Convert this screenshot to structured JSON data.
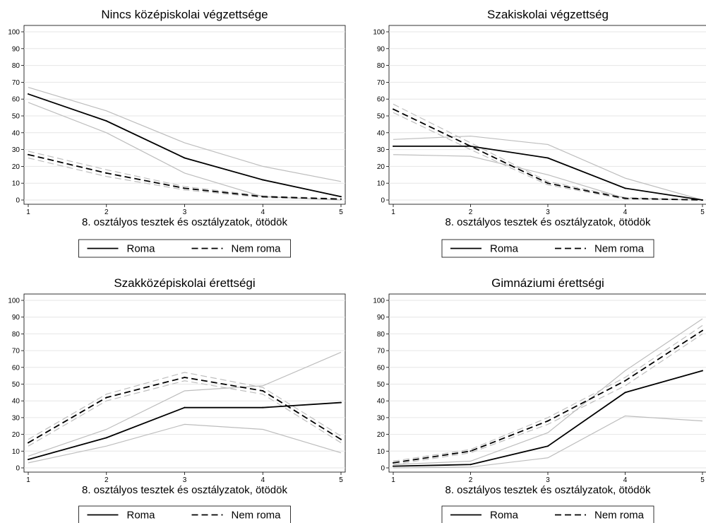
{
  "chart_data": [
    {
      "type": "line",
      "title": "Nincs középiskolai végzettsége",
      "xlabel": "8. osztályos tesztek és osztályzatok, ötödök",
      "ylabel": "",
      "x": [
        1,
        2,
        3,
        4,
        5
      ],
      "xlim": [
        1,
        5
      ],
      "ylim": [
        0,
        100
      ],
      "yticks": [
        0,
        10,
        20,
        30,
        40,
        50,
        60,
        70,
        80,
        90,
        100
      ],
      "grid": true,
      "legend": "bottom",
      "series": [
        {
          "name": "Roma",
          "style": "solid",
          "values": [
            63,
            47,
            25,
            12,
            2
          ],
          "ci_low": [
            58,
            40,
            16,
            2,
            0
          ],
          "ci_high": [
            67,
            53,
            34,
            20,
            11
          ]
        },
        {
          "name": "Nem roma",
          "style": "dashed",
          "values": [
            27,
            16,
            7,
            2,
            0.5
          ],
          "ci_low": [
            25,
            14,
            6,
            1.5,
            0.3
          ],
          "ci_high": [
            29,
            18,
            8,
            2.5,
            0.8
          ]
        }
      ]
    },
    {
      "type": "line",
      "title": "Szakiskolai végzettség",
      "xlabel": "8. osztályos tesztek és osztályzatok, ötödök",
      "ylabel": "",
      "x": [
        1,
        2,
        3,
        4,
        5
      ],
      "xlim": [
        1,
        5
      ],
      "ylim": [
        0,
        100
      ],
      "yticks": [
        0,
        10,
        20,
        30,
        40,
        50,
        60,
        70,
        80,
        90,
        100
      ],
      "grid": true,
      "legend": "bottom",
      "series": [
        {
          "name": "Roma",
          "style": "solid",
          "values": [
            32,
            32,
            25,
            7,
            0
          ],
          "ci_low": [
            27,
            26,
            15,
            1,
            0
          ],
          "ci_high": [
            36,
            38,
            33,
            13,
            0
          ]
        },
        {
          "name": "Nem roma",
          "style": "dashed",
          "values": [
            54,
            32,
            10,
            1,
            0
          ],
          "ci_low": [
            52,
            30,
            9,
            0.5,
            0
          ],
          "ci_high": [
            57,
            34,
            11,
            1.5,
            0
          ]
        }
      ]
    },
    {
      "type": "line",
      "title": "Szakközépiskolai érettségi",
      "xlabel": "8. osztályos tesztek és osztályzatok, ötödök",
      "ylabel": "",
      "x": [
        1,
        2,
        3,
        4,
        5
      ],
      "xlim": [
        1,
        5
      ],
      "ylim": [
        0,
        100
      ],
      "yticks": [
        0,
        10,
        20,
        30,
        40,
        50,
        60,
        70,
        80,
        90,
        100
      ],
      "grid": true,
      "legend": "bottom",
      "series": [
        {
          "name": "Roma",
          "style": "solid",
          "values": [
            5,
            18,
            36,
            36,
            39
          ],
          "ci_low": [
            3,
            13,
            26,
            23,
            9
          ],
          "ci_high": [
            7,
            23,
            46,
            49,
            69
          ]
        },
        {
          "name": "Nem roma",
          "style": "dashed",
          "values": [
            15,
            42,
            54,
            46,
            17
          ],
          "ci_low": [
            13,
            40,
            52,
            44,
            15
          ],
          "ci_high": [
            17,
            44,
            57,
            48,
            19
          ]
        }
      ]
    },
    {
      "type": "line",
      "title": "Gimnáziumi érettségi",
      "xlabel": "8. osztályos tesztek és osztályzatok, ötödök",
      "ylabel": "",
      "x": [
        1,
        2,
        3,
        4,
        5
      ],
      "xlim": [
        1,
        5
      ],
      "ylim": [
        0,
        100
      ],
      "yticks": [
        0,
        10,
        20,
        30,
        40,
        50,
        60,
        70,
        80,
        90,
        100
      ],
      "grid": true,
      "legend": "bottom",
      "series": [
        {
          "name": "Roma",
          "style": "solid",
          "values": [
            1,
            2,
            13,
            45,
            58
          ],
          "ci_low": [
            0,
            0.5,
            6,
            31,
            28
          ],
          "ci_high": [
            2,
            4,
            21,
            58,
            89
          ]
        },
        {
          "name": "Nem roma",
          "style": "dashed",
          "values": [
            3,
            10,
            28,
            52,
            82
          ],
          "ci_low": [
            2,
            9,
            26,
            49,
            80
          ],
          "ci_high": [
            4,
            11,
            30,
            54,
            85
          ]
        }
      ]
    }
  ],
  "colors": {
    "main_line": "#000000",
    "ci_line": "#bdbdbd",
    "grid": "#e6e6e6",
    "axis": "#000000"
  }
}
